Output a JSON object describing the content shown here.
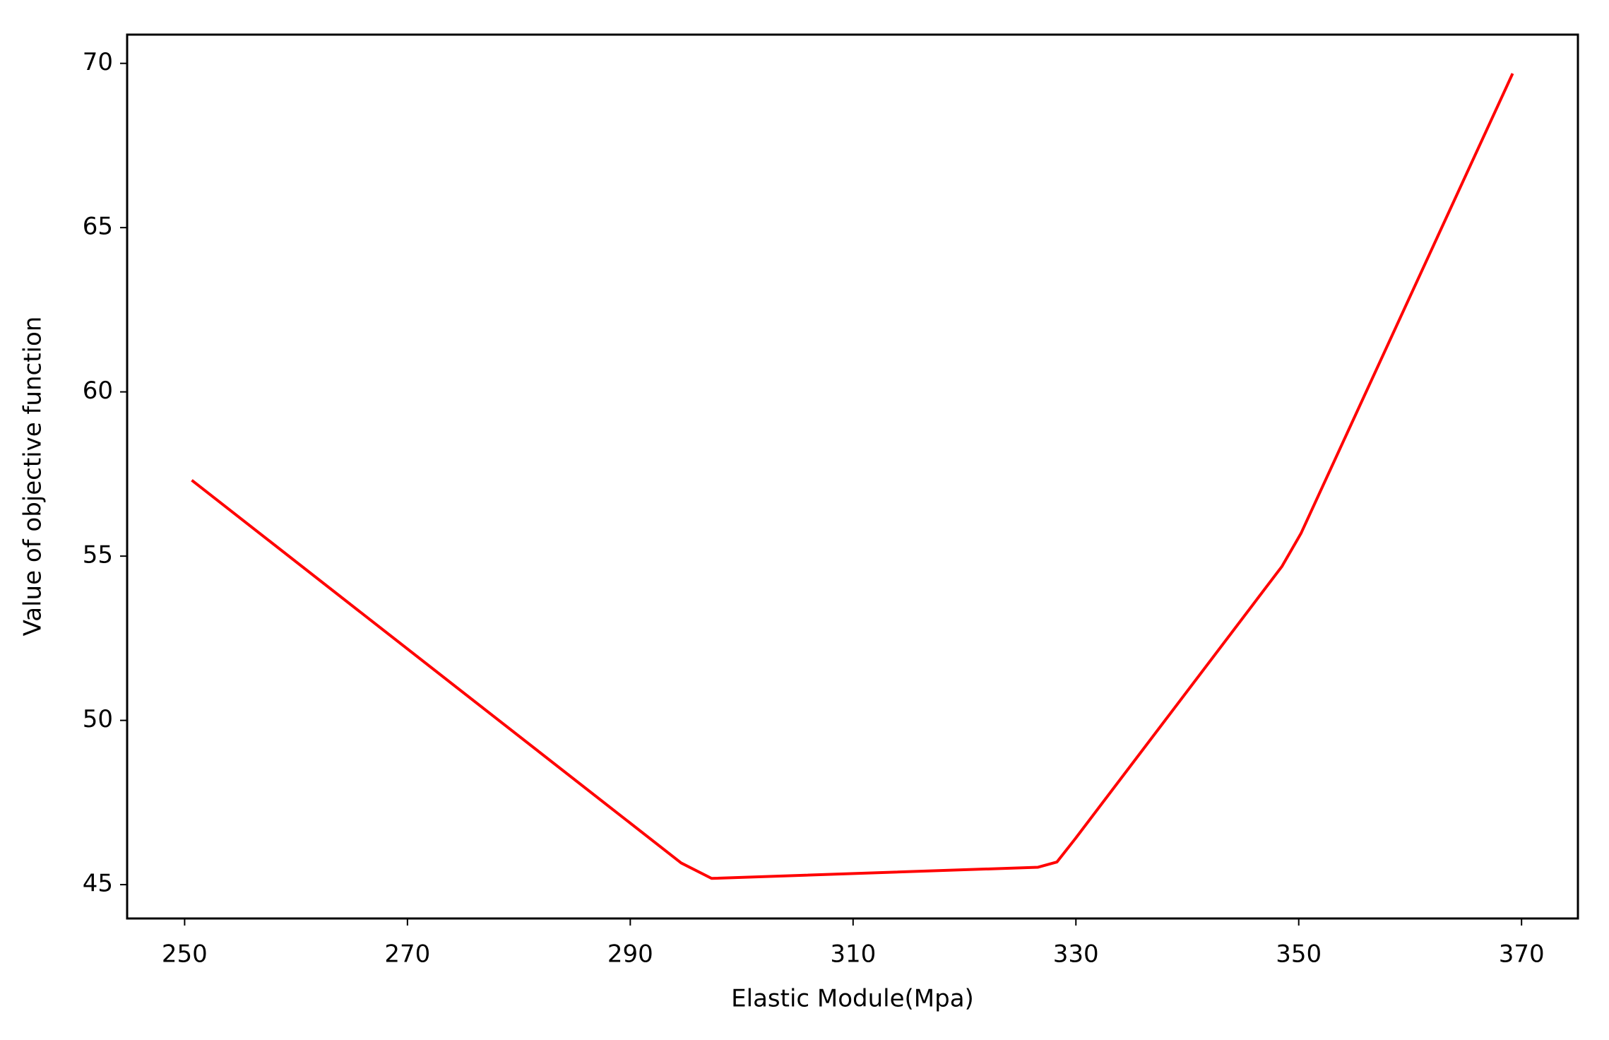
{
  "chart_data": {
    "type": "line",
    "xlabel": "Elastic Module(Mpa)",
    "ylabel": "Value of objective function",
    "x": [
      250.64,
      294.57,
      297.3,
      326.6,
      328.3,
      329.9,
      348.5,
      350.2,
      369.2
    ],
    "series": [
      {
        "color": "#ff0000",
        "values": [
          57.31,
          45.66,
          45.19,
          45.53,
          45.69,
          46.38,
          54.69,
          55.69,
          69.69
        ]
      }
    ],
    "xlim": [
      244.84,
      375.06
    ],
    "xticks": [
      250,
      270,
      290,
      310,
      330,
      350,
      370
    ],
    "ylim": [
      43.97,
      70.875
    ],
    "yticks": [
      45,
      50,
      55,
      60,
      65,
      70
    ],
    "grid": false
  }
}
